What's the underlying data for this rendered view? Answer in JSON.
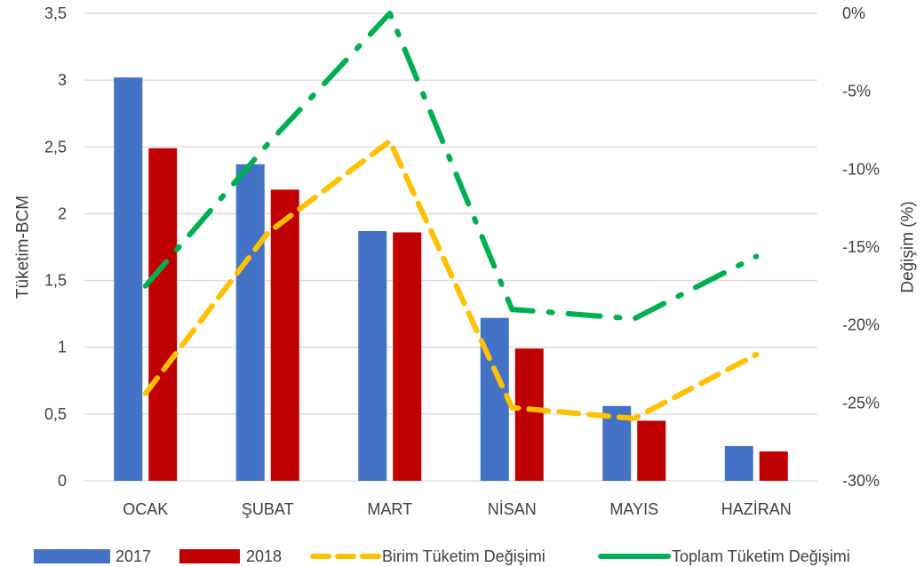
{
  "chart_data": {
    "type": "bar",
    "categories": [
      "OCAK",
      "ŞUBAT",
      "MART",
      "NİSAN",
      "MAYIS",
      "HAZİRAN"
    ],
    "series": [
      {
        "name": "2017",
        "kind": "bar",
        "axis": "left",
        "color": "#4472C4",
        "values": [
          3.02,
          2.37,
          1.87,
          1.22,
          0.56,
          0.26
        ]
      },
      {
        "name": "2018",
        "kind": "bar",
        "axis": "left",
        "color": "#C00000",
        "values": [
          2.49,
          2.18,
          1.86,
          0.99,
          0.45,
          0.22
        ]
      },
      {
        "name": "Birim Tüketim Değişimi",
        "kind": "line",
        "dash": "long",
        "axis": "right",
        "color": "#FFC000",
        "values": [
          -24.4,
          -14.1,
          -8.2,
          -25.3,
          -26.0,
          -21.9
        ]
      },
      {
        "name": "Toplam Tüketim Değişimi",
        "kind": "line",
        "dash": "dashdot",
        "axis": "right",
        "color": "#00B050",
        "values": [
          -17.5,
          -8.4,
          0,
          -19.0,
          -19.6,
          -15.6
        ]
      }
    ],
    "y_left": {
      "label": "Tüketim-BCM",
      "ylim": [
        0,
        3.5
      ],
      "ticks": [
        "0",
        "0,5",
        "1",
        "1,5",
        "2",
        "2,5",
        "3",
        "3,5"
      ]
    },
    "y_right": {
      "label": "Değişim (%)",
      "ylim": [
        -30,
        0
      ],
      "ticks": [
        "-30%",
        "-25%",
        "-20%",
        "-15%",
        "-10%",
        "-5%",
        "0%"
      ]
    },
    "grid": true,
    "legend_position": "bottom",
    "legend": [
      "2017",
      "2018",
      "Birim Tüketim Değişimi",
      "Toplam Tüketim Değişimi"
    ]
  }
}
